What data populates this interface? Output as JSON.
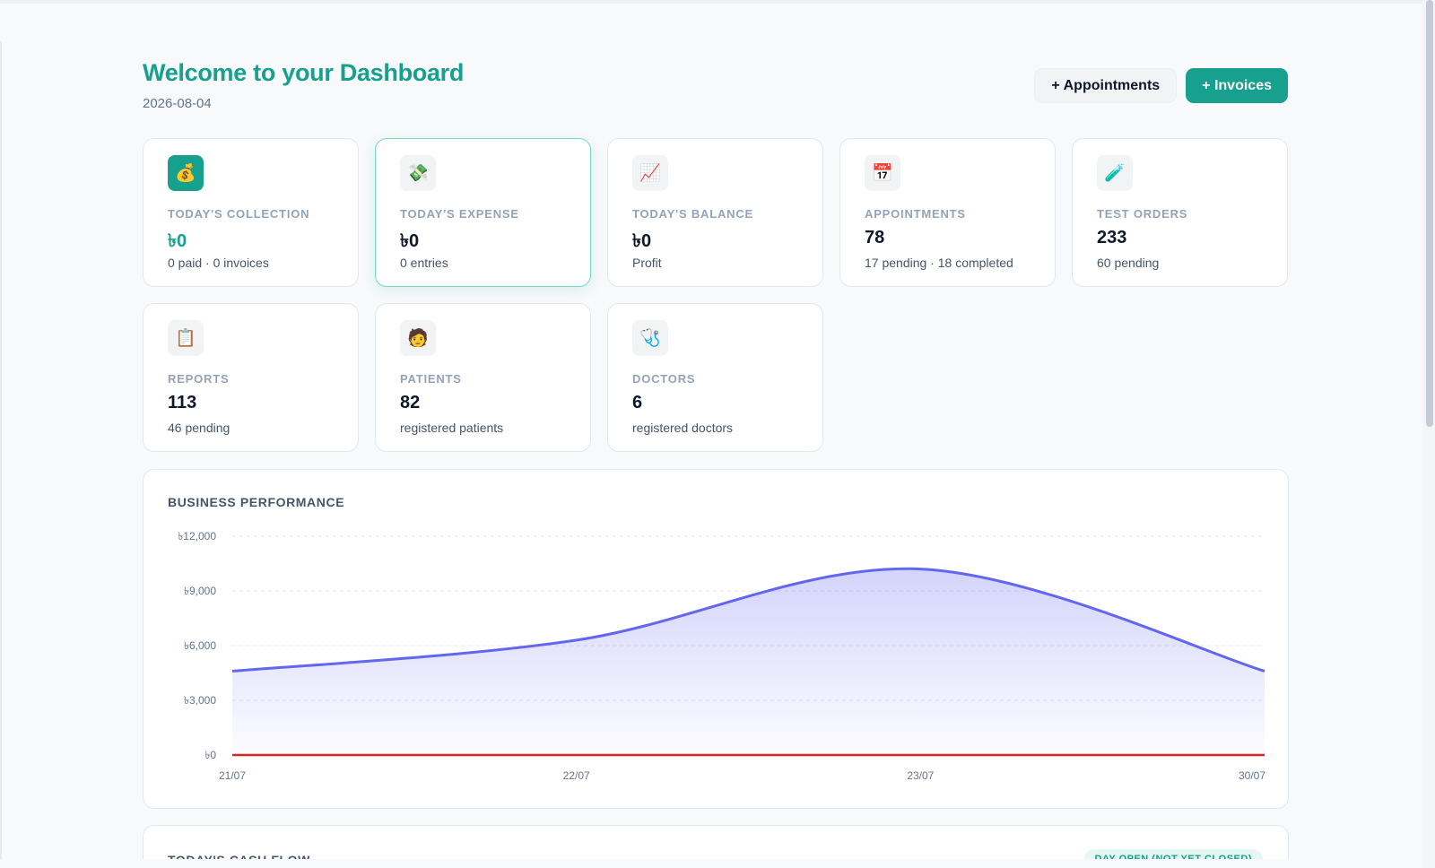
{
  "header": {
    "title": "Welcome to your Dashboard",
    "date": "2026-08-04",
    "appointments_button": "+ Appointments",
    "invoices_button": "+ Invoices"
  },
  "cards": [
    {
      "icon": "money-bag-icon",
      "glyph": "💰",
      "label": "TODAY'S COLLECTION",
      "value": "৳0",
      "sub": "0 paid · 0 invoices"
    },
    {
      "icon": "money-wings-icon",
      "glyph": "💸",
      "label": "TODAY'S EXPENSE",
      "value": "৳0",
      "sub": "0 entries"
    },
    {
      "icon": "chart-up-icon",
      "glyph": "📈",
      "label": "TODAY'S BALANCE",
      "value": "৳0",
      "sub": "Profit"
    },
    {
      "icon": "calendar-icon",
      "glyph": "📅",
      "label": "APPOINTMENTS",
      "value": "78",
      "sub": "17 pending · 18 completed"
    },
    {
      "icon": "test-tube-icon",
      "glyph": "🧪",
      "label": "TEST ORDERS",
      "value": "233",
      "sub": "60 pending"
    },
    {
      "icon": "clipboard-icon",
      "glyph": "📋",
      "label": "REPORTS",
      "value": "113",
      "sub": "46 pending"
    },
    {
      "icon": "patient-icon",
      "glyph": "🧑",
      "label": "PATIENTS",
      "value": "82",
      "sub": "registered patients"
    },
    {
      "icon": "stethoscope-icon",
      "glyph": "🩺",
      "label": "DOCTORS",
      "value": "6",
      "sub": "registered doctors"
    }
  ],
  "performance": {
    "title": "BUSINESS PERFORMANCE"
  },
  "cash_flow": {
    "title": "TODAY'S CASH FLOW",
    "badge": "DAY OPEN (NOT YET CLOSED)"
  },
  "colors": {
    "accent": "#17a08d",
    "income_line": "#6366f1",
    "expense_line": "#dc2626"
  },
  "chart_data": {
    "type": "area",
    "categories": [
      "21/07",
      "22/07",
      "23/07",
      "30/07"
    ],
    "series": [
      {
        "values": [
          4600,
          6300,
          10200,
          4600
        ]
      },
      {
        "values": [
          0,
          0,
          0,
          0
        ]
      }
    ],
    "y_ticks": [
      "৳0",
      "৳3,000",
      "৳6,000",
      "৳9,000",
      "৳12,000"
    ],
    "ylim": [
      0,
      12000
    ],
    "grid": true
  }
}
